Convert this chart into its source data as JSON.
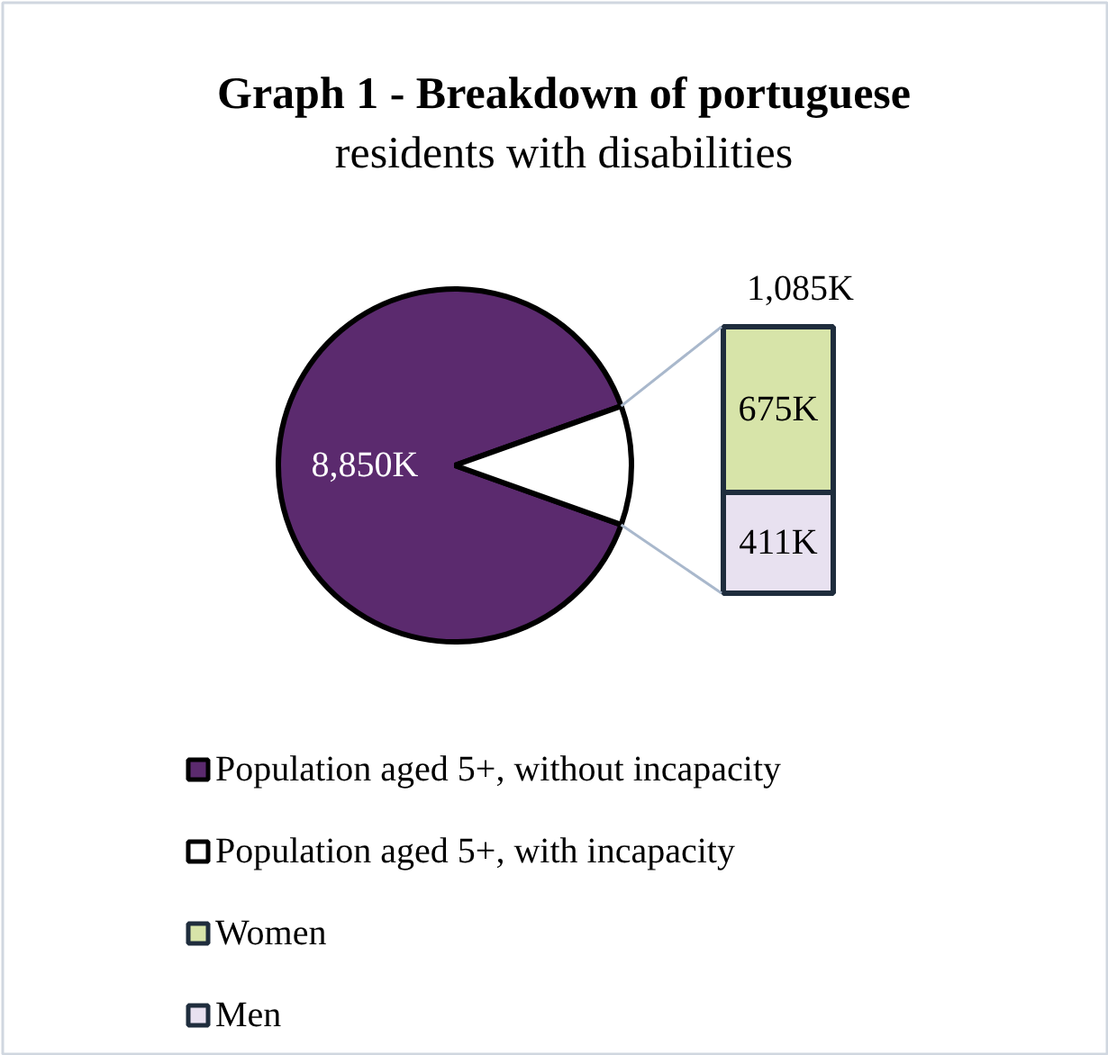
{
  "chart_data": [
    {
      "type": "pie",
      "title": "Graph 1 - Breakdown of portuguese residents with disabilities",
      "categories": [
        "Population aged 5+, without incapacity",
        "Population aged 5+, with incapacity"
      ],
      "values": [
        8850,
        1085
      ],
      "value_labels": [
        "8,850K",
        "1,085K"
      ],
      "colors": [
        "#5b2a6e",
        "#ffffff"
      ],
      "legend": "bottom"
    },
    {
      "type": "bar",
      "stacked": true,
      "categories": [
        null
      ],
      "series": [
        {
          "name": "Men",
          "color": "#e8e1f0",
          "values": [
            411
          ],
          "value_labels": [
            "411K"
          ]
        },
        {
          "name": "Women",
          "color": "#d7e4a9",
          "values": [
            675
          ],
          "value_labels": [
            "675K"
          ]
        }
      ],
      "legend": "bottom"
    }
  ]
}
